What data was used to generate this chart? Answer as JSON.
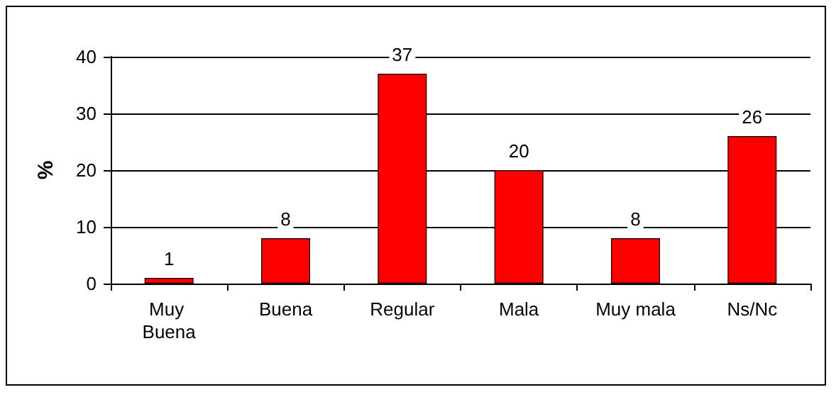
{
  "chart_data": {
    "type": "bar",
    "ylabel": "%",
    "categories": [
      "Muy Buena",
      "Buena",
      "Regular",
      "Mala",
      "Muy mala",
      "Ns/Nc"
    ],
    "values": [
      1,
      8,
      37,
      20,
      8,
      26
    ],
    "color": "#ff0000",
    "ylim": [
      0,
      40
    ],
    "yticks": [
      0,
      10,
      20,
      30,
      40
    ],
    "grid": "y",
    "data_labels": true
  }
}
